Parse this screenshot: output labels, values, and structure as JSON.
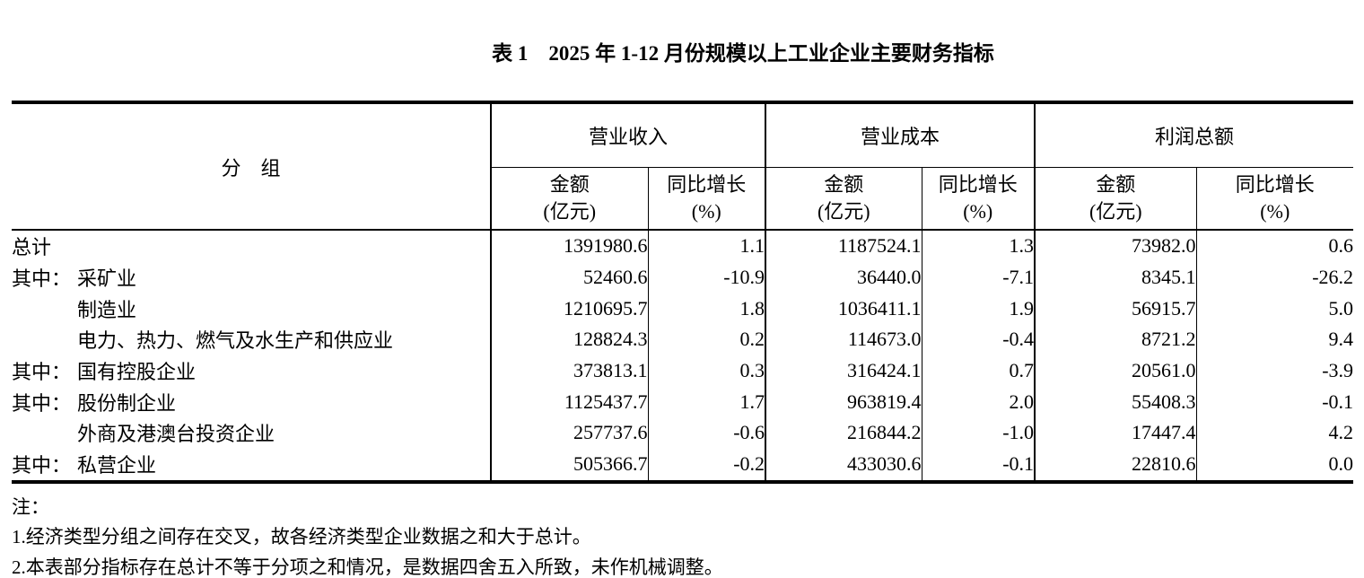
{
  "title": {
    "full_text": "表 1　2025 年 1-12 月份规模以上工业企业主要财务指标"
  },
  "table": {
    "group_header": "分　组",
    "col_groups": [
      {
        "label": "营业收入"
      },
      {
        "label": "营业成本"
      },
      {
        "label": "利润总额"
      }
    ],
    "sub_headers": [
      {
        "line1": "金额",
        "line2": "(亿元)"
      },
      {
        "line1": "同比增长",
        "line2": "(%)"
      },
      {
        "line1": "金额",
        "line2": "(亿元)"
      },
      {
        "line1": "同比增长",
        "line2": "(%)"
      },
      {
        "line1": "金额",
        "line2": "(亿元)"
      },
      {
        "line1": "同比增长",
        "line2": "(%)"
      }
    ],
    "rows": [
      {
        "prefix": "",
        "label": "总计",
        "indent": false,
        "values": [
          "1391980.6",
          "1.1",
          "1187524.1",
          "1.3",
          "73982.0",
          "0.6"
        ]
      },
      {
        "prefix": "其中：",
        "label": "采矿业",
        "indent": false,
        "values": [
          "52460.6",
          "-10.9",
          "36440.0",
          "-7.1",
          "8345.1",
          "-26.2"
        ]
      },
      {
        "prefix": "",
        "label": "制造业",
        "indent": true,
        "values": [
          "1210695.7",
          "1.8",
          "1036411.1",
          "1.9",
          "56915.7",
          "5.0"
        ]
      },
      {
        "prefix": "",
        "label": "电力、热力、燃气及水生产和供应业",
        "indent": true,
        "values": [
          "128824.3",
          "0.2",
          "114673.0",
          "-0.4",
          "8721.2",
          "9.4"
        ]
      },
      {
        "prefix": "其中：",
        "label": "国有控股企业",
        "indent": false,
        "values": [
          "373813.1",
          "0.3",
          "316424.1",
          "0.7",
          "20561.0",
          "-3.9"
        ]
      },
      {
        "prefix": "其中：",
        "label": "股份制企业",
        "indent": false,
        "values": [
          "1125437.7",
          "1.7",
          "963819.4",
          "2.0",
          "55408.3",
          "-0.1"
        ]
      },
      {
        "prefix": "",
        "label": "外商及港澳台投资企业",
        "indent": true,
        "values": [
          "257737.6",
          "-0.6",
          "216844.2",
          "-1.0",
          "17447.4",
          "4.2"
        ]
      },
      {
        "prefix": "其中：",
        "label": "私营企业",
        "indent": false,
        "values": [
          "505366.7",
          "-0.2",
          "433030.6",
          "-0.1",
          "22810.6",
          "0.0"
        ]
      }
    ]
  },
  "notes": {
    "label": "注：",
    "items": [
      "1.经济类型分组之间存在交叉，故各经济类型企业数据之和大于总计。",
      "2.本表部分指标存在总计不等于分项之和情况，是数据四舍五入所致，未作机械调整。"
    ]
  }
}
